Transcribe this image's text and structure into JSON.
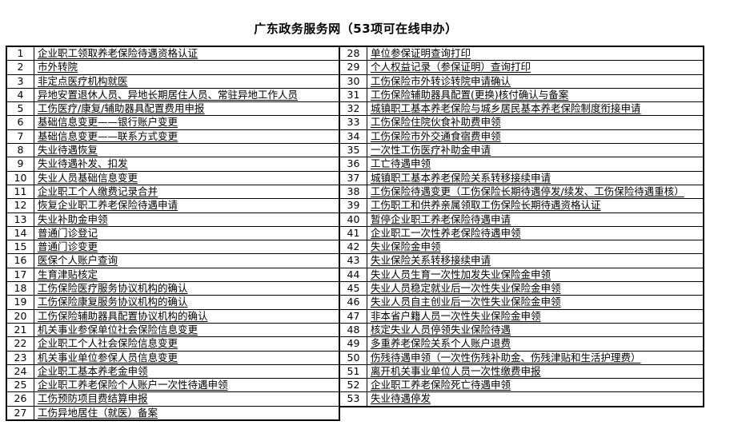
{
  "title": "广东政务服务网（53项可在线申办）",
  "colors": {
    "background": "#ffffff",
    "text": "#000000",
    "border": "#000000"
  },
  "tables": {
    "left": [
      {
        "no": "1",
        "label": "企业职工领取养老保险待遇资格认证"
      },
      {
        "no": "2",
        "label": "市外转院"
      },
      {
        "no": "3",
        "label": "非定点医疗机构就医"
      },
      {
        "no": "4",
        "label": "异地安置退休人员、异地长期居住人员、常驻异地工作人员"
      },
      {
        "no": "5",
        "label": "工伤医疗/康复/辅助器具配置费用申报"
      },
      {
        "no": "6",
        "label": "基础信息变更——银行账户变更"
      },
      {
        "no": "7",
        "label": "基础信息变更——联系方式变更"
      },
      {
        "no": "8",
        "label": "失业待遇恢复"
      },
      {
        "no": "9",
        "label": "失业待遇补发、扣发"
      },
      {
        "no": "10",
        "label": "失业人员基础信息变更"
      },
      {
        "no": "11",
        "label": "企业职工个人缴费记录合并"
      },
      {
        "no": "12",
        "label": "恢复企业职工养老保险待遇申请"
      },
      {
        "no": "13",
        "label": "失业补助金申领"
      },
      {
        "no": "14",
        "label": "普通门诊登记"
      },
      {
        "no": "15",
        "label": "普通门诊变更"
      },
      {
        "no": "16",
        "label": "医保个人账户查询"
      },
      {
        "no": "17",
        "label": "生育津贴核定"
      },
      {
        "no": "18",
        "label": "工伤保险医疗服务协议机构的确认"
      },
      {
        "no": "19",
        "label": "工伤保险康复服务协议机构的确认"
      },
      {
        "no": "20",
        "label": "工伤保险辅助器具配置协议机构的确认"
      },
      {
        "no": "21",
        "label": "机关事业参保单位社会保险信息变更"
      },
      {
        "no": "22",
        "label": "企业职工个人社会保险信息变更"
      },
      {
        "no": "23",
        "label": "机关事业单位参保人员信息变更"
      },
      {
        "no": "24",
        "label": "企业职工基本养老金申领"
      },
      {
        "no": "25",
        "label": "企业职工养老保险个人账户一次性待遇申领"
      },
      {
        "no": "26",
        "label": "工伤预防项目费结算申报"
      },
      {
        "no": "27",
        "label": "工伤异地居住（就医）备案"
      }
    ],
    "right": [
      {
        "no": "28",
        "label": "单位参保证明查询打印"
      },
      {
        "no": "29",
        "label": "个人权益记录（参保证明）查询打印"
      },
      {
        "no": "30",
        "label": "工伤保险市外转诊转院申请确认"
      },
      {
        "no": "31",
        "label": "工伤保险辅助器具配置(更换)核付确认与备案"
      },
      {
        "no": "32",
        "label": "城镇职工基本养老保险与城乡居民基本养老保险制度衔接申请"
      },
      {
        "no": "33",
        "label": "工伤保险住院伙食补助费申领"
      },
      {
        "no": "34",
        "label": "工伤保险市外交通食宿费申领"
      },
      {
        "no": "35",
        "label": "一次性工伤医疗补助金申请"
      },
      {
        "no": "36",
        "label": "工亡待遇申领"
      },
      {
        "no": "37",
        "label": "城镇职工基本养老保险关系转移接续申请"
      },
      {
        "no": "38",
        "label": "工伤保险待遇变更（工伤保险长期待遇停发/续发、工伤保险待遇重核）"
      },
      {
        "no": "39",
        "label": "工伤职工和供养亲属领取工伤保险长期待遇资格认证"
      },
      {
        "no": "40",
        "label": "暂停企业职工养老保险待遇申请"
      },
      {
        "no": "41",
        "label": "企业职工一次性养老保险待遇申领"
      },
      {
        "no": "42",
        "label": "失业保险金申领"
      },
      {
        "no": "43",
        "label": "失业保险关系转移接续申请"
      },
      {
        "no": "44",
        "label": "失业人员生育一次性加发失业保险金申领"
      },
      {
        "no": "45",
        "label": "失业人员稳定就业后一次性失业保险金申领"
      },
      {
        "no": "46",
        "label": "失业人员自主创业后一次性失业保险金申领"
      },
      {
        "no": "47",
        "label": "非本省户籍人员一次性失业保险金申领"
      },
      {
        "no": "48",
        "label": "核定失业人员停领失业保险待遇"
      },
      {
        "no": "49",
        "label": "多重养老保险关系个人账户退费"
      },
      {
        "no": "50",
        "label": "伤残待遇申领（一次性伤残补助金、伤残津贴和生活护理费）"
      },
      {
        "no": "51",
        "label": "离开机关事业单位人员一次性缴费申报"
      },
      {
        "no": "52",
        "label": "企业职工养老保险死亡待遇申领"
      },
      {
        "no": "53",
        "label": "失业待遇停发"
      }
    ]
  }
}
